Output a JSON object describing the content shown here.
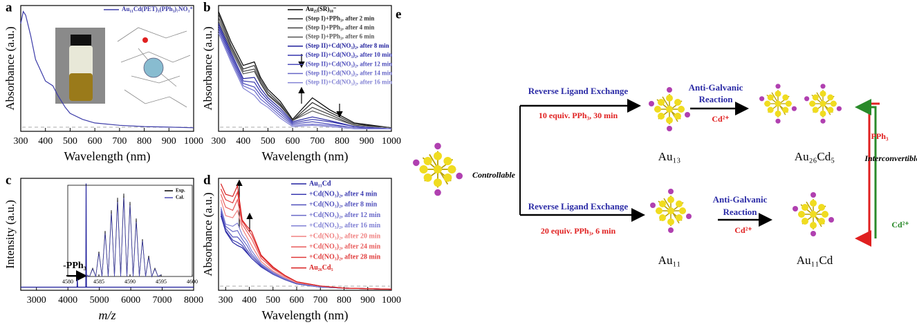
{
  "chart_data": [
    {
      "type": "line",
      "label": "a",
      "xlabel": "Wavelength (nm)",
      "ylabel": "Absorbance (a.u.)",
      "xlim": [
        300,
        1000
      ],
      "xticks": [
        300,
        400,
        500,
        600,
        700,
        800,
        900,
        1000
      ],
      "ylim": [
        0,
        1.05
      ],
      "legend": "upper right",
      "x": [
        300,
        310,
        320,
        340,
        360,
        400,
        430,
        450,
        480,
        500,
        550,
        600,
        700,
        800,
        900,
        1000
      ],
      "series": [
        {
          "name": "Au₁₁Cd(PET)₃(PPh₃)₇NO₃⁺",
          "color": "#3b3ba8",
          "values": [
            0.9,
            1.0,
            0.97,
            0.8,
            0.6,
            0.42,
            0.38,
            0.3,
            0.2,
            0.15,
            0.1,
            0.07,
            0.05,
            0.04,
            0.035,
            0.03
          ]
        }
      ]
    },
    {
      "type": "line",
      "label": "b",
      "xlabel": "Wavelength (nm)",
      "ylabel": "Absorbance (a.u.)",
      "xlim": [
        300,
        1000
      ],
      "xticks": [
        300,
        400,
        500,
        600,
        700,
        800,
        900,
        1000
      ],
      "ylim": [
        0,
        1.05
      ],
      "legend": "upper right",
      "x": [
        300,
        350,
        400,
        445,
        470,
        500,
        550,
        600,
        680,
        750,
        850,
        1000
      ],
      "series": [
        {
          "name": "Au₂₅(SR)₁₈⁻",
          "color": "#000000",
          "values": [
            1.0,
            0.75,
            0.55,
            0.58,
            0.45,
            0.35,
            0.25,
            0.1,
            0.28,
            0.18,
            0.07,
            0.03
          ]
        },
        {
          "name": "(Step I)+PPh₃, after 2 min",
          "color": "#2a2a2a",
          "values": [
            0.98,
            0.72,
            0.52,
            0.55,
            0.43,
            0.33,
            0.23,
            0.09,
            0.24,
            0.16,
            0.06,
            0.03
          ]
        },
        {
          "name": "(Step I)+PPh₃, after 4 min",
          "color": "#404040",
          "values": [
            0.95,
            0.7,
            0.5,
            0.52,
            0.41,
            0.31,
            0.22,
            0.09,
            0.2,
            0.14,
            0.05,
            0.03
          ]
        },
        {
          "name": "(Step I)+PPh₃, after 6 min",
          "color": "#555555",
          "values": [
            0.92,
            0.68,
            0.48,
            0.5,
            0.4,
            0.3,
            0.21,
            0.09,
            0.17,
            0.12,
            0.05,
            0.03
          ]
        },
        {
          "name": "(Step II)+Cd(NO₃)₂, after 8 min",
          "color": "#1f1f9c",
          "values": [
            0.9,
            0.66,
            0.44,
            0.45,
            0.36,
            0.28,
            0.19,
            0.08,
            0.12,
            0.09,
            0.04,
            0.02
          ]
        },
        {
          "name": "(Step II)+Cd(NO₃)₂, after 10 min",
          "color": "#3434ad",
          "values": [
            0.88,
            0.64,
            0.42,
            0.41,
            0.33,
            0.26,
            0.17,
            0.07,
            0.1,
            0.08,
            0.04,
            0.02
          ]
        },
        {
          "name": "(Step II)+Cd(NO₃)₂, after 12 min",
          "color": "#4c4cbb",
          "values": [
            0.86,
            0.62,
            0.4,
            0.37,
            0.3,
            0.24,
            0.15,
            0.06,
            0.08,
            0.06,
            0.03,
            0.02
          ]
        },
        {
          "name": "(Step II)+Cd(NO₃)₂, after 14 min",
          "color": "#6666c8",
          "values": [
            0.84,
            0.6,
            0.38,
            0.34,
            0.27,
            0.22,
            0.13,
            0.05,
            0.06,
            0.05,
            0.03,
            0.02
          ]
        },
        {
          "name": "(Step II)+Cd(NO₃)₂, after 16 min",
          "color": "#8282d4",
          "values": [
            0.82,
            0.58,
            0.36,
            0.3,
            0.24,
            0.2,
            0.11,
            0.04,
            0.05,
            0.04,
            0.02,
            0.02
          ]
        }
      ]
    },
    {
      "type": "line",
      "label": "c",
      "xlabel": "m/z",
      "ylabel": "Intensity (a.u.)",
      "annotation": "-PPh₃",
      "xlim": [
        2500,
        8000
      ],
      "xticks": [
        3000,
        4000,
        5000,
        6000,
        7000,
        8000
      ],
      "ylim": [
        -0.03,
        1.05
      ],
      "x": [
        2500,
        4290,
        4300,
        4310,
        4570,
        4580,
        4590,
        8000
      ],
      "series": [
        {
          "color": "#1f1f9c",
          "values": [
            0,
            0,
            0.08,
            0,
            0,
            1,
            0,
            0
          ]
        }
      ]
    },
    {
      "type": "line",
      "label": "d",
      "xlabel": "Wavelength (nm)",
      "ylabel": "Absorbance (a.u.)",
      "xlim": [
        270,
        1000
      ],
      "xticks": [
        300,
        400,
        500,
        600,
        700,
        800,
        900,
        1000
      ],
      "ylim": [
        0,
        1.05
      ],
      "legend": "upper right",
      "x": [
        280,
        300,
        330,
        350,
        370,
        390,
        410,
        450,
        500,
        550,
        600,
        700,
        800,
        1000
      ],
      "series": [
        {
          "name": "Au₁₁Cd",
          "color": "#2020a0",
          "values": [
            0.7,
            0.55,
            0.45,
            0.42,
            0.4,
            0.35,
            0.3,
            0.22,
            0.15,
            0.1,
            0.06,
            0.03,
            0.02,
            0.01
          ]
        },
        {
          "name": "+Cd(NO₃)₂, after 4 min",
          "color": "#3a3ab0",
          "values": [
            0.72,
            0.56,
            0.47,
            0.45,
            0.42,
            0.36,
            0.3,
            0.22,
            0.15,
            0.1,
            0.06,
            0.03,
            0.02,
            0.01
          ]
        },
        {
          "name": "+Cd(NO₃)₂, after 8 min",
          "color": "#5050bc",
          "values": [
            0.74,
            0.58,
            0.5,
            0.5,
            0.45,
            0.38,
            0.32,
            0.23,
            0.15,
            0.1,
            0.06,
            0.03,
            0.02,
            0.01
          ]
        },
        {
          "name": "+Cd(NO₃)₂, after 12 min",
          "color": "#6868c8",
          "values": [
            0.76,
            0.6,
            0.55,
            0.56,
            0.48,
            0.42,
            0.34,
            0.24,
            0.16,
            0.11,
            0.07,
            0.03,
            0.02,
            0.01
          ]
        },
        {
          "name": "+Cd(NO₃)₂, after 16 min",
          "color": "#8080d4",
          "values": [
            0.78,
            0.62,
            0.6,
            0.63,
            0.52,
            0.46,
            0.37,
            0.25,
            0.17,
            0.11,
            0.07,
            0.03,
            0.02,
            0.01
          ]
        },
        {
          "name": "+Cd(NO₃)₂, after 20 min",
          "color": "#f08080",
          "values": [
            0.85,
            0.7,
            0.68,
            0.75,
            0.58,
            0.5,
            0.42,
            0.27,
            0.18,
            0.12,
            0.07,
            0.04,
            0.02,
            0.01
          ]
        },
        {
          "name": "+Cd(NO₃)₂, after 24 min",
          "color": "#e85a5a",
          "values": [
            0.9,
            0.78,
            0.75,
            0.85,
            0.62,
            0.55,
            0.48,
            0.3,
            0.2,
            0.13,
            0.08,
            0.04,
            0.02,
            0.01
          ]
        },
        {
          "name": "+Cd(NO₃)₂, after 28 min",
          "color": "#e03a3a",
          "values": [
            0.95,
            0.85,
            0.82,
            0.92,
            0.65,
            0.58,
            0.52,
            0.32,
            0.21,
            0.14,
            0.08,
            0.04,
            0.02,
            0.01
          ]
        },
        {
          "name": "Au₂₆Cd₅",
          "color": "#d81e1e",
          "values": [
            1.0,
            0.9,
            0.88,
            0.98,
            0.66,
            0.6,
            0.55,
            0.33,
            0.22,
            0.14,
            0.08,
            0.04,
            0.02,
            0.01
          ]
        }
      ]
    },
    {
      "type": "line",
      "xlim": [
        4580,
        4600
      ],
      "xticks": [
        4580,
        4585,
        4590,
        4595,
        4600
      ],
      "ylim": [
        0,
        1.1
      ],
      "legend": "upper right",
      "x": [
        4583,
        4583.5,
        4584,
        4584.5,
        4585,
        4585.5,
        4586,
        4586.5,
        4587,
        4587.5,
        4588,
        4588.5,
        4589,
        4589.5,
        4590,
        4590.5,
        4591,
        4591.5,
        4592,
        4592.5,
        4593,
        4593.5,
        4594,
        4594.5,
        4595
      ],
      "series": [
        {
          "name": "Exp.",
          "color": "#000000",
          "values": [
            0.02,
            0,
            0.1,
            0,
            0.3,
            0,
            0.55,
            0,
            0.8,
            0,
            0.95,
            0,
            1.0,
            0,
            0.9,
            0,
            0.7,
            0,
            0.45,
            0,
            0.25,
            0,
            0.1,
            0,
            0.02
          ]
        },
        {
          "name": "Cal.",
          "color": "#4a4ab5",
          "values": [
            0.02,
            0,
            0.09,
            0,
            0.28,
            0,
            0.52,
            0,
            0.76,
            0,
            0.9,
            0,
            0.95,
            0,
            0.86,
            0,
            0.66,
            0,
            0.43,
            0,
            0.23,
            0,
            0.09,
            0,
            0.02
          ]
        }
      ]
    }
  ],
  "diagram": {
    "label": "e",
    "controllable": "Controllable",
    "top": {
      "exchange": "Reverse Ligand Exchange",
      "condition": "10 equiv. PPh₃, 30 min",
      "product": "Au₁₃",
      "agr": [
        "Anti-Galvanic",
        "Reaction"
      ],
      "ion": "Cd²⁺",
      "final": "Au₂₆Cd₅"
    },
    "bottom": {
      "exchange": "Reverse Ligand Exchange",
      "condition": "20 equiv. PPh₃, 6 min",
      "product": "Au₁₁",
      "agr": [
        "Anti-Galvanic",
        "Reaction"
      ],
      "ion": "Cd²⁺",
      "final": "Au₁₁Cd"
    },
    "interconvertible": "Interconvertible",
    "down": "PPh₃",
    "up": "Cd²⁺"
  }
}
